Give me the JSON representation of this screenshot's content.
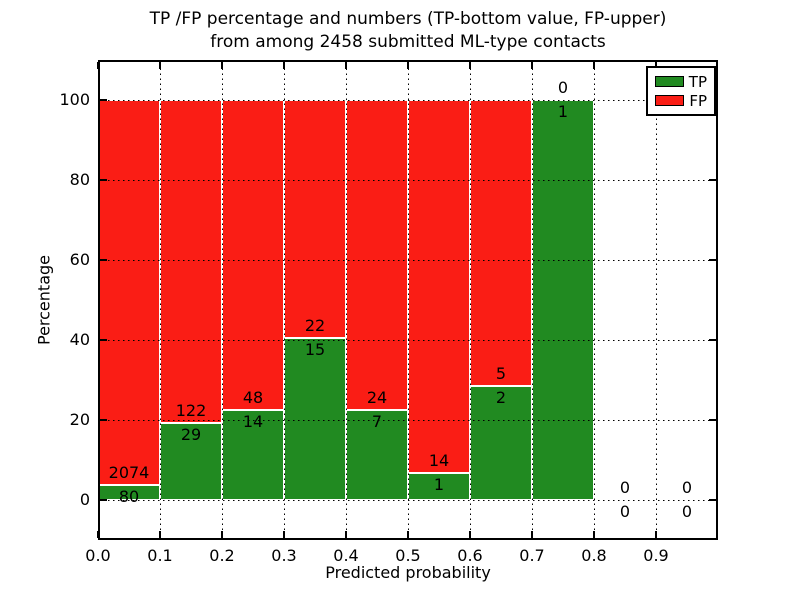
{
  "figure": {
    "title_line1": "TP /FP percentage and numbers (TP-bottom value, FP-upper)",
    "title_line2": "from among 2458 submitted ML-type contacts"
  },
  "chart_data": {
    "type": "bar",
    "stacked": true,
    "normalized_to_percent": true,
    "title": "TP /FP percentage and numbers (TP-bottom value, FP-upper) from among 2458 submitted ML-type contacts",
    "xlabel": "Predicted probability",
    "ylabel": "Percentage",
    "total_contacts": 2458,
    "xlim": [
      0.0,
      1.0
    ],
    "ylim": [
      -10,
      110
    ],
    "grid": "dotted-black-above-bars",
    "legend_position": "upper-right",
    "bin_width": 0.1,
    "bins_start": [
      0.0,
      0.1,
      0.2,
      0.3,
      0.4,
      0.5,
      0.6,
      0.7,
      0.8,
      0.9
    ],
    "xticks": [
      {
        "v": 0.0,
        "label": "0.0"
      },
      {
        "v": 0.1,
        "label": "0.1"
      },
      {
        "v": 0.2,
        "label": "0.2"
      },
      {
        "v": 0.3,
        "label": "0.3"
      },
      {
        "v": 0.4,
        "label": "0.4"
      },
      {
        "v": 0.5,
        "label": "0.5"
      },
      {
        "v": 0.6,
        "label": "0.6"
      },
      {
        "v": 0.7,
        "label": "0.7"
      },
      {
        "v": 0.8,
        "label": "0.8"
      },
      {
        "v": 0.9,
        "label": "0.9"
      }
    ],
    "yticks": [
      {
        "v": 0,
        "label": "0"
      },
      {
        "v": 20,
        "label": "20"
      },
      {
        "v": 40,
        "label": "40"
      },
      {
        "v": 60,
        "label": "60"
      },
      {
        "v": 80,
        "label": "80"
      },
      {
        "v": 100,
        "label": "100"
      }
    ],
    "series": [
      {
        "name": "TP",
        "color": "#218a21",
        "values": [
          80,
          29,
          14,
          15,
          7,
          1,
          2,
          1,
          0,
          0
        ]
      },
      {
        "name": "FP",
        "color": "#fa1d15",
        "values": [
          2074,
          122,
          48,
          22,
          24,
          14,
          5,
          0,
          0,
          0
        ]
      }
    ],
    "tp_percent_of_bin": [
      3.71,
      19.21,
      22.58,
      40.54,
      22.58,
      6.67,
      28.57,
      100.0,
      null,
      null
    ],
    "legend": [
      {
        "label": "TP",
        "color": "#218a21"
      },
      {
        "label": "FP",
        "color": "#fa1d15"
      }
    ]
  }
}
